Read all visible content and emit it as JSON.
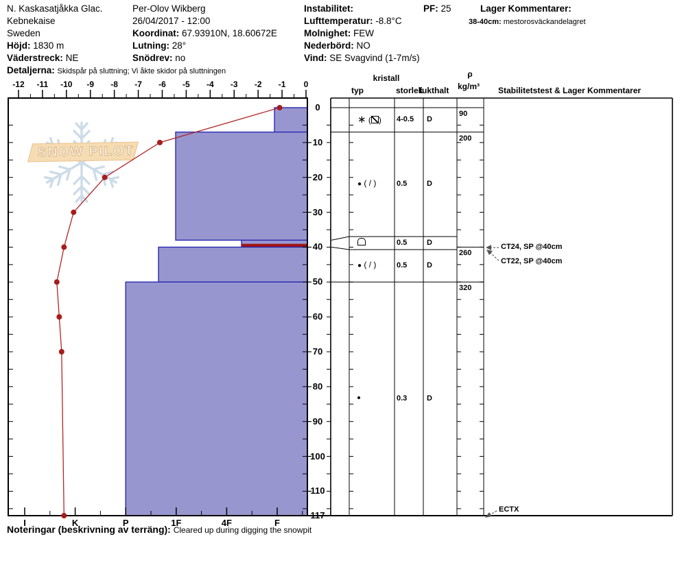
{
  "header": {
    "site": "N. Kaskasatjåkka Glac.",
    "region": "Kebnekaise",
    "country": "Sweden",
    "elevation_label": "Höjd:",
    "elevation": "1830 m",
    "aspect_label": "Väderstreck:",
    "aspect": "NE",
    "details_label": "Detaljerna:",
    "details": "Skidspår på sluttning; Vi åkte skidor på sluttningen",
    "observer": "Per-Olov Wikberg",
    "datetime": "26/04/2017 - 12:00",
    "coordinate_label": "Koordinat:",
    "coordinate": "67.93910N, 18.60672E",
    "slope_label": "Lutning:",
    "slope": "28°",
    "drifting_label": "Snödrev:",
    "drifting": "no",
    "instability_label": "Instabilitet:",
    "airtemp_label": "Lufttemperatur:",
    "airtemp": "-8.8°C",
    "sky_label": "Molnighet:",
    "sky": "FEW",
    "precip_label": "Nederbörd:",
    "precip": "NO",
    "wind_label": "Vind:",
    "wind": "SE Svagvind (1-7m/s)",
    "pf_label": "PF:",
    "pf": "25",
    "layer_comments_label": "Lager Kommentarer:",
    "layer_comment_range": "38-40cm:",
    "layer_comment_text": "mestorosväckandelagret"
  },
  "watermark": {
    "text": "SNOW PILOT"
  },
  "table_headers": {
    "group": "kristall",
    "typ": "typ",
    "storlek": "storlek",
    "fukthalt": "fukthalt",
    "rho": "ρ",
    "rho_unit": "kg/m³",
    "stability": "Stabilitetstest & Lager Kommentarer"
  },
  "footer": {
    "note_label": "Noteringar (beskrivning av terräng):",
    "note": "Cleared up during digging the snowpit"
  },
  "colors": {
    "bar_fill": "#9896cf",
    "bar_stroke": "#2a2ab0",
    "temp_line": "#b22424",
    "flag_red": "#a11212",
    "banner": "#f6dcb2",
    "snowflake": "#ccdce8"
  },
  "chart_data": {
    "type": "snow-profile",
    "temp_axis": {
      "min": -12,
      "max": 0,
      "unit": "°C"
    },
    "depth_axis": {
      "labels": [
        0,
        10,
        20,
        30,
        40,
        50,
        60,
        70,
        80,
        90,
        100,
        110
      ],
      "bottom_label": 117,
      "max_cm": 117
    },
    "hardness_axis": {
      "categories": [
        "I",
        "K",
        "P",
        "1F",
        "4F",
        "F"
      ]
    },
    "temperature_profile_c": [
      [
        0,
        -1.1
      ],
      [
        10,
        -6.1
      ],
      [
        20,
        -8.4
      ],
      [
        30,
        -9.7
      ],
      [
        40,
        -10.1
      ],
      [
        50,
        -10.4
      ],
      [
        60,
        -10.3
      ],
      [
        70,
        -10.2
      ],
      [
        117,
        -10.1
      ]
    ],
    "layers": [
      {
        "top_cm": 0,
        "bottom_cm": 7,
        "hardness": "F",
        "grain_type": "PP(DF)",
        "grain_code": "PPDF",
        "size_mm": "4-0.5",
        "moisture": "D",
        "density_kg_m3": 90,
        "flagged": false
      },
      {
        "top_cm": 7,
        "bottom_cm": 38,
        "hardness": "1F",
        "grain_type": "RG(DF)",
        "grain_code": "RGDF",
        "size_mm": "0.5",
        "moisture": "D",
        "density_kg_m3": 200,
        "flagged": false
      },
      {
        "top_cm": 38,
        "bottom_cm": 40,
        "hardness": "4F-F",
        "grain_type": "FC",
        "grain_code": "ARCH",
        "size_mm": "0.5",
        "moisture": "D",
        "density_kg_m3": null,
        "flagged": true
      },
      {
        "top_cm": 40,
        "bottom_cm": 50,
        "hardness": "P-1F",
        "grain_type": "RG(DF)",
        "grain_code": "RGDF",
        "size_mm": "0.5",
        "moisture": "D",
        "density_kg_m3": 260,
        "flagged": false
      },
      {
        "top_cm": 50,
        "bottom_cm": 117,
        "hardness": "P",
        "grain_type": "RG",
        "grain_code": "RGS",
        "size_mm": "0.3",
        "moisture": "D",
        "density_kg_m3": 320,
        "flagged": false
      }
    ],
    "densities": [
      {
        "value": "90",
        "at_top_cm": 0
      },
      {
        "value": "200",
        "at_top_cm": 7
      },
      {
        "value": "260",
        "at_top_cm": 40
      },
      {
        "value": "320",
        "at_top_cm": 50
      }
    ],
    "stability_tests": [
      {
        "label": "CT24, SP @40cm",
        "depth_cm": 40
      },
      {
        "label": "CT22, SP @40cm",
        "depth_cm": 40
      },
      {
        "label": "ECTX",
        "depth_cm": 117
      }
    ]
  }
}
